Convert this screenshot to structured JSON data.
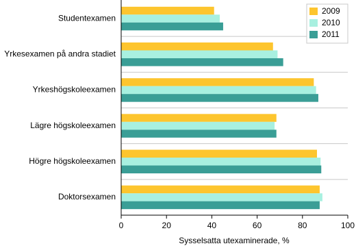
{
  "chart_data": {
    "type": "hbar",
    "x_label": "Sysselsatta utexaminerade, %",
    "categories": [
      "Studentexamen",
      "Yrkesexamen på andra stadiet",
      "Yrkeshögskoleexamen",
      "Lägre högskoleexamen",
      "Högre högskoleexamen",
      "Doktorsexamen"
    ],
    "series": [
      {
        "name": "2009",
        "color": "#fdc52e",
        "values": [
          41,
          67,
          85,
          68.5,
          86.4,
          87.6
        ]
      },
      {
        "name": "2010",
        "color": "#a8f0e0",
        "values": [
          43.5,
          69,
          86,
          67.7,
          88,
          88.8
        ]
      },
      {
        "name": "2011",
        "color": "#3a9e96",
        "values": [
          45,
          71.5,
          87,
          68.5,
          88.3,
          87.6
        ]
      }
    ],
    "xlim": [
      0,
      100
    ],
    "xticks": [
      0,
      20,
      40,
      60,
      80,
      100
    ],
    "grid": true,
    "legend": "top-right"
  }
}
